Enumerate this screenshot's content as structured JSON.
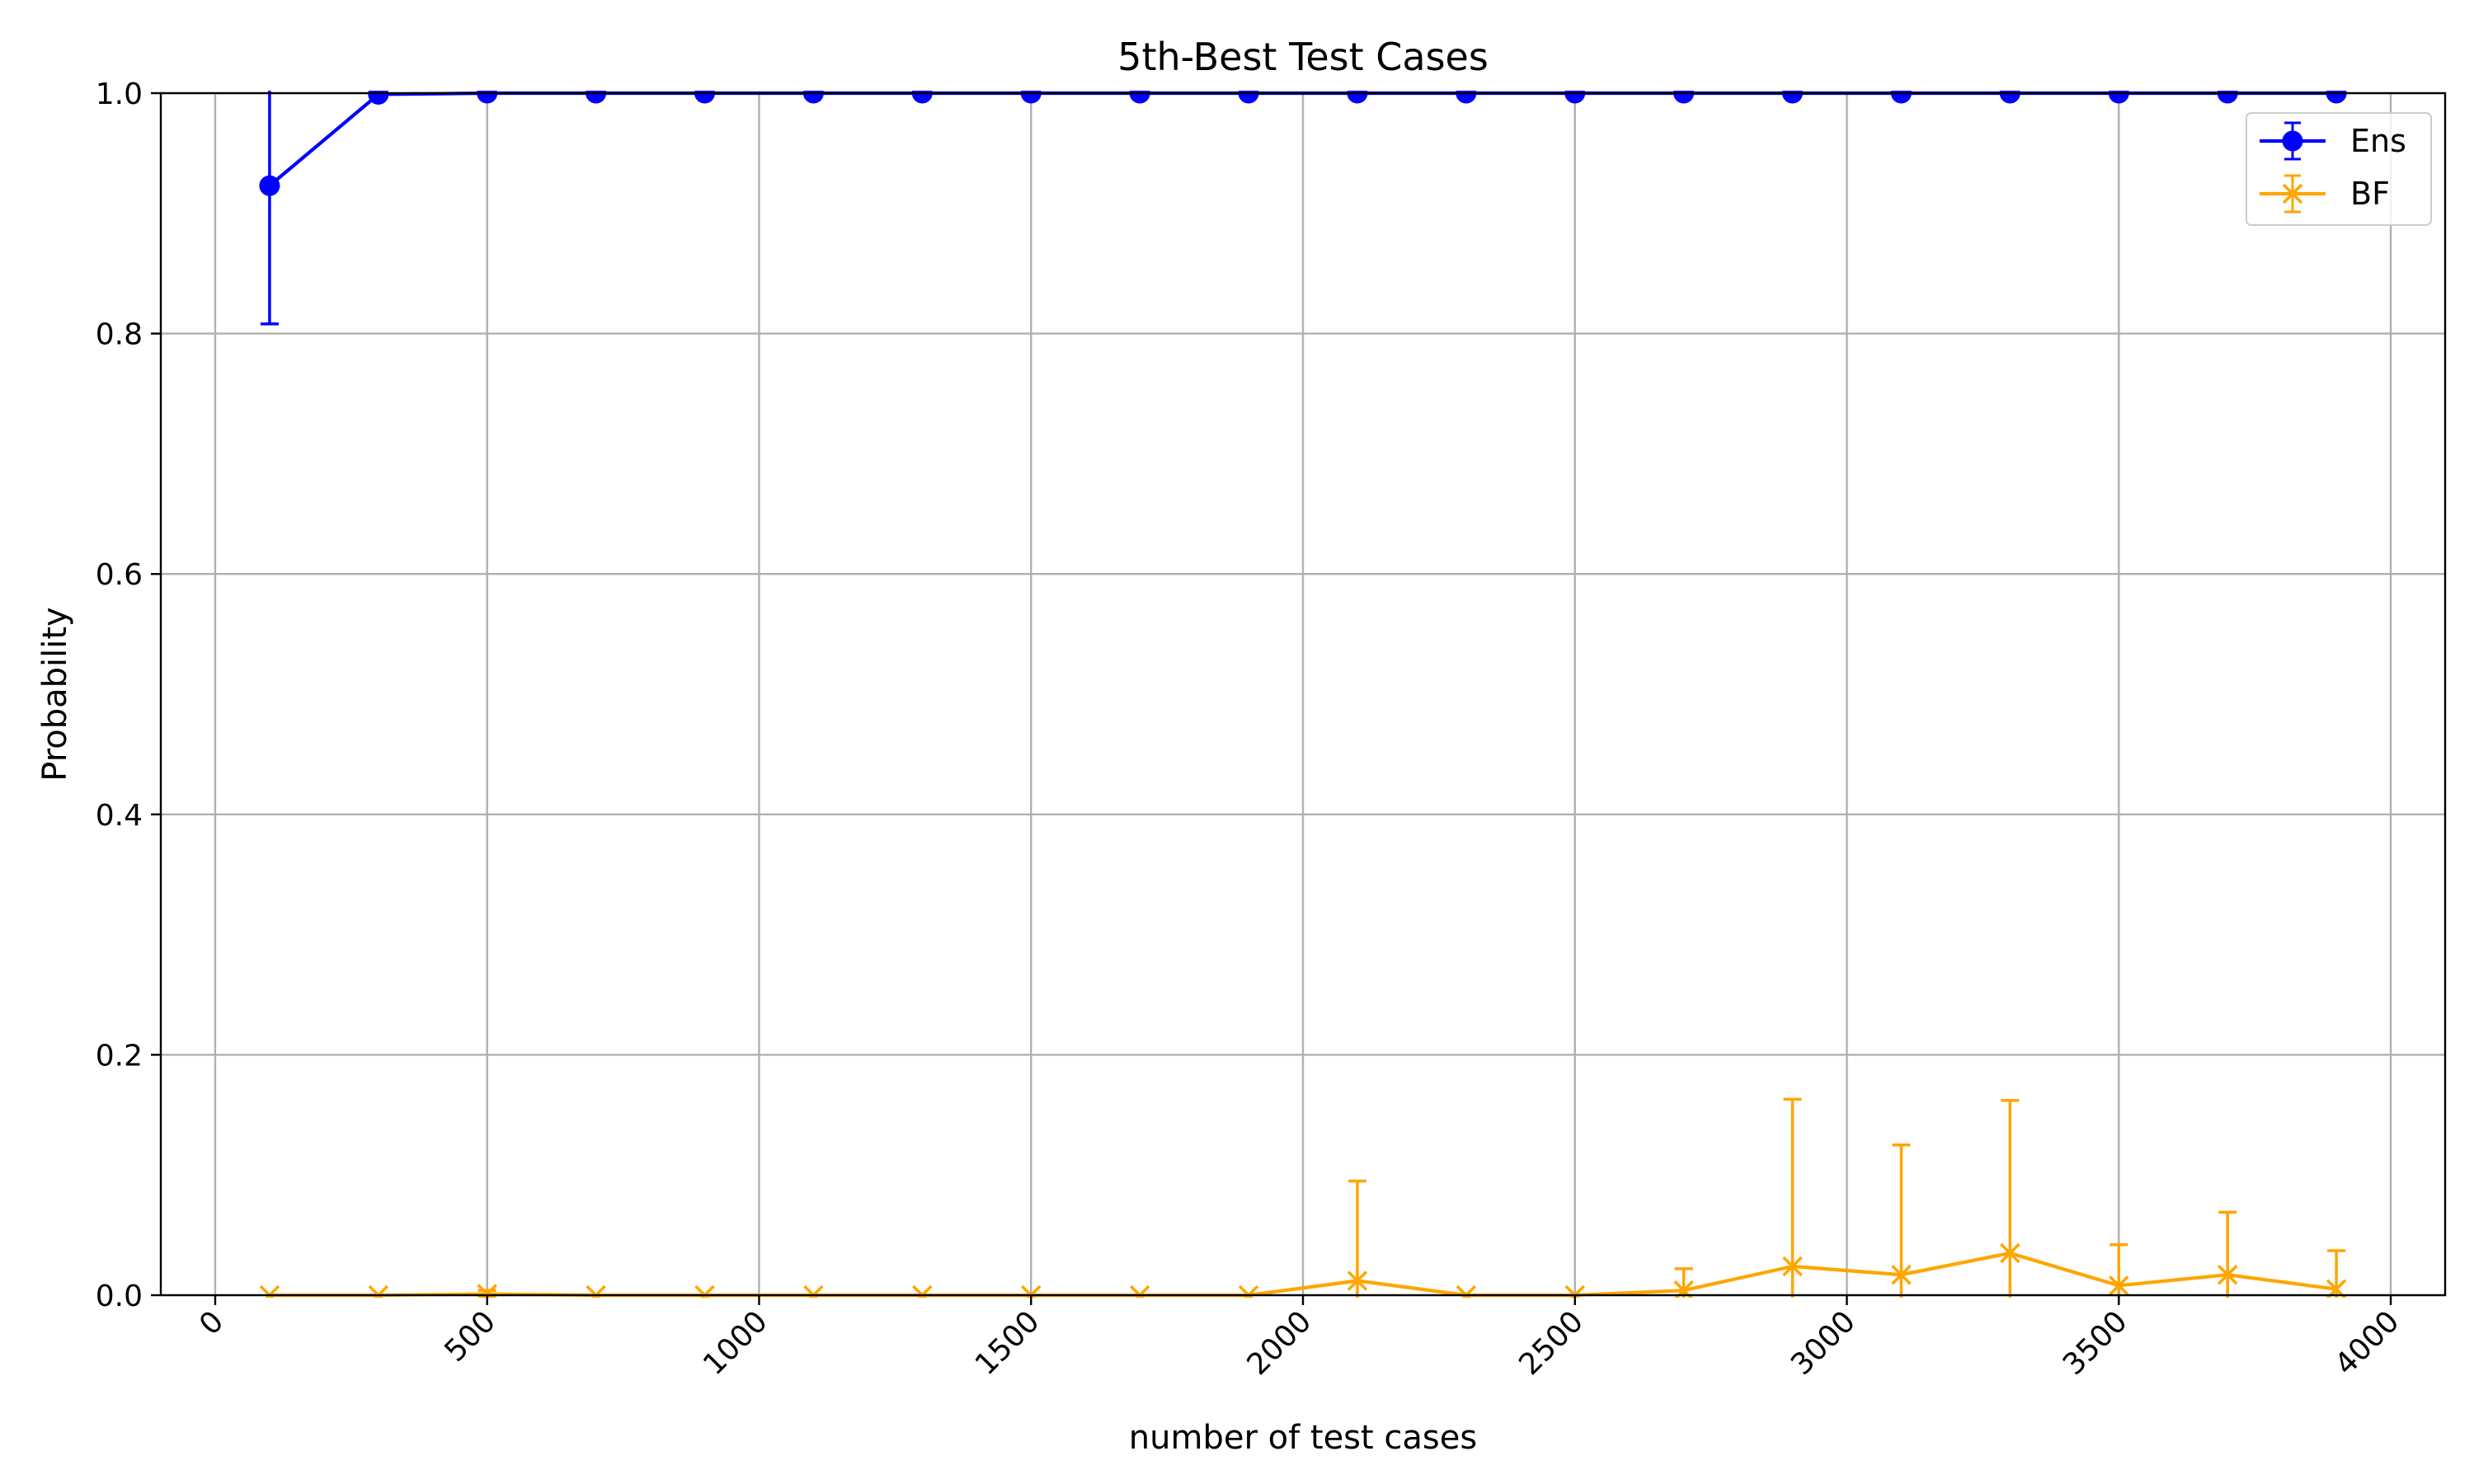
{
  "chart_data": {
    "type": "line",
    "title": "5th-Best Test Cases",
    "xlabel": "number of test cases",
    "ylabel": "Probability",
    "xlim": [
      -100,
      4100
    ],
    "ylim": [
      0.0,
      1.0
    ],
    "x_ticks": [
      0,
      500,
      1000,
      1500,
      2000,
      2500,
      3000,
      3500,
      4000
    ],
    "x_tick_labels": [
      "0",
      "500",
      "1000",
      "1500",
      "2000",
      "2500",
      "3000",
      "3500",
      "4000"
    ],
    "y_ticks": [
      0.0,
      0.2,
      0.4,
      0.6,
      0.8,
      1.0
    ],
    "y_tick_labels": [
      "0.0",
      "0.2",
      "0.4",
      "0.6",
      "0.8",
      "1.0"
    ],
    "x_tick_rotation": 45,
    "grid": true,
    "legend_position": "top-right",
    "x": [
      100,
      300,
      500,
      700,
      900,
      1100,
      1300,
      1500,
      1700,
      1900,
      2100,
      2300,
      2500,
      2700,
      2900,
      3100,
      3300,
      3500,
      3700,
      3900
    ],
    "series": [
      {
        "name": "Ens",
        "color": "#0000ff",
        "marker": "circle",
        "values": [
          0.923,
          0.999,
          1.0,
          1.0,
          1.0,
          1.0,
          1.0,
          1.0,
          1.0,
          1.0,
          1.0,
          1.0,
          1.0,
          1.0,
          1.0,
          1.0,
          1.0,
          1.0,
          1.0,
          1.0
        ],
        "errors": [
          0.115,
          0.002,
          0,
          0,
          0,
          0,
          0,
          0,
          0,
          0,
          0,
          0,
          0,
          0,
          0,
          0,
          0,
          0,
          0,
          0
        ]
      },
      {
        "name": "BF",
        "color": "#ffa500",
        "marker": "x",
        "values": [
          0.0,
          0.0,
          0.001,
          0.0,
          0.0,
          0.0,
          0.0,
          0.0,
          0.0,
          0.0,
          0.012,
          0.0,
          0.0,
          0.004,
          0.024,
          0.017,
          0.035,
          0.008,
          0.017,
          0.005
        ],
        "errors": [
          0,
          0,
          0.003,
          0,
          0,
          0,
          0,
          0,
          0,
          0,
          0.083,
          0,
          0,
          0.018,
          0.139,
          0.108,
          0.127,
          0.034,
          0.052,
          0.032
        ]
      }
    ]
  }
}
